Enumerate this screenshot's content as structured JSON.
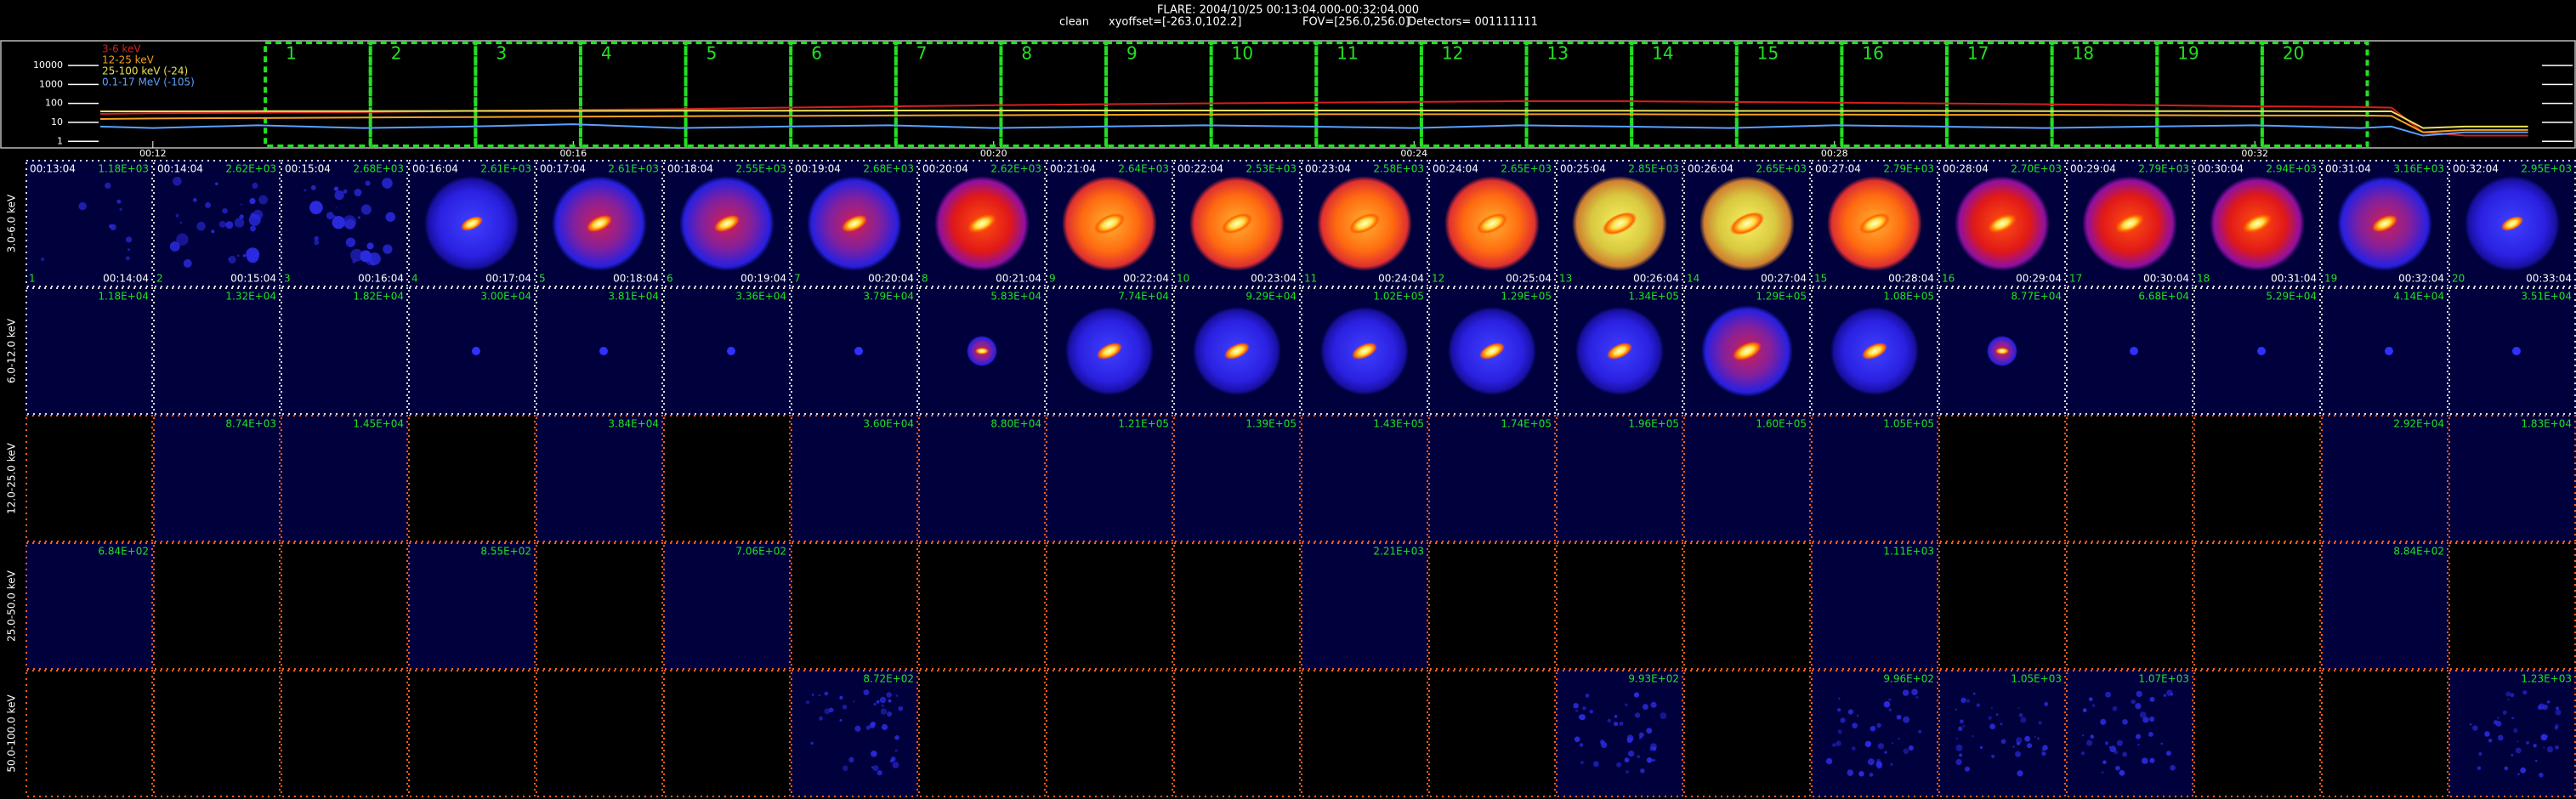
{
  "header": {
    "title": "FLARE: 2004/10/25 00:13:04.000-00:32:04.000",
    "info": [
      "clean",
      "xyoffset=[-263.0,102.2]",
      "FOV=[256.0,256.0]",
      "Detectors= 001111111"
    ]
  },
  "chart_data": {
    "type": "line",
    "log_y": true,
    "x": [
      11.5,
      12,
      13,
      14,
      15,
      16,
      17,
      18,
      19,
      20,
      21,
      22,
      23,
      24,
      25,
      26,
      27,
      28,
      29,
      30,
      31,
      32,
      33,
      33.3,
      33.6,
      34,
      34.6
    ],
    "xlim": [
      11.5,
      34.7
    ],
    "xticks": [
      {
        "value": 12,
        "label": "00:12"
      },
      {
        "value": 16,
        "label": "00:16"
      },
      {
        "value": 20,
        "label": "00:20"
      },
      {
        "value": 24,
        "label": "00:24"
      },
      {
        "value": 28,
        "label": "00:28"
      },
      {
        "value": 32,
        "label": "00:32"
      }
    ],
    "ylim": [
      0.45,
      200000
    ],
    "yticks": [
      1,
      10,
      100,
      1000,
      10000
    ],
    "series": [
      {
        "name": "3-6 keV",
        "color": "#d42020",
        "values": [
          28,
          30,
          32,
          35,
          40,
          45,
          50,
          60,
          70,
          80,
          90,
          100,
          110,
          120,
          130,
          130,
          120,
          110,
          100,
          90,
          80,
          70,
          65,
          60,
          3,
          2,
          2
        ]
      },
      {
        "name": "12-25 keV",
        "color": "#f0a020",
        "values": [
          15,
          16,
          17,
          18,
          19,
          20,
          21,
          22,
          23,
          24,
          25,
          26,
          27,
          27,
          27,
          27,
          26,
          26,
          25,
          25,
          24,
          23,
          23,
          22,
          3,
          4,
          4
        ]
      },
      {
        "name": "25-100 keV (-24)",
        "color": "#e8e060",
        "values": [
          38,
          38,
          39,
          39,
          40,
          40,
          41,
          41,
          42,
          42,
          42,
          42,
          42,
          42,
          41,
          41,
          40,
          40,
          40,
          39,
          39,
          39,
          38,
          38,
          5,
          6,
          6
        ]
      },
      {
        "name": "0.1-17 MeV (-105)",
        "color": "#5aa0ff",
        "values": [
          6,
          5,
          7,
          5,
          6,
          8,
          5,
          6,
          7,
          5,
          6,
          7,
          6,
          5,
          7,
          6,
          5,
          7,
          6,
          5,
          6,
          7,
          5,
          6,
          2,
          3,
          3
        ]
      }
    ],
    "intervals": [
      {
        "start": 13.07,
        "end": 14.07,
        "label": "1"
      },
      {
        "start": 14.07,
        "end": 15.07,
        "label": "2"
      },
      {
        "start": 15.07,
        "end": 16.07,
        "label": "3"
      },
      {
        "start": 16.07,
        "end": 17.07,
        "label": "4"
      },
      {
        "start": 17.07,
        "end": 18.07,
        "label": "5"
      },
      {
        "start": 18.07,
        "end": 19.07,
        "label": "6"
      },
      {
        "start": 19.07,
        "end": 20.07,
        "label": "7"
      },
      {
        "start": 20.07,
        "end": 21.07,
        "label": "8"
      },
      {
        "start": 21.07,
        "end": 22.07,
        "label": "9"
      },
      {
        "start": 22.07,
        "end": 23.07,
        "label": "10"
      },
      {
        "start": 23.07,
        "end": 24.07,
        "label": "11"
      },
      {
        "start": 24.07,
        "end": 25.07,
        "label": "12"
      },
      {
        "start": 25.07,
        "end": 26.07,
        "label": "13"
      },
      {
        "start": 26.07,
        "end": 27.07,
        "label": "14"
      },
      {
        "start": 27.07,
        "end": 28.07,
        "label": "15"
      },
      {
        "start": 28.07,
        "end": 29.07,
        "label": "16"
      },
      {
        "start": 29.07,
        "end": 30.07,
        "label": "17"
      },
      {
        "start": 30.07,
        "end": 31.07,
        "label": "18"
      },
      {
        "start": 31.07,
        "end": 32.07,
        "label": "19"
      },
      {
        "start": 32.07,
        "end": 33.07,
        "label": "20"
      }
    ]
  },
  "image_grid": {
    "times": [
      {
        "start": "00:13:04",
        "end": "00:14:04"
      },
      {
        "start": "00:14:04",
        "end": "00:15:04"
      },
      {
        "start": "00:15:04",
        "end": "00:16:04"
      },
      {
        "start": "00:16:04",
        "end": "00:17:04"
      },
      {
        "start": "00:17:04",
        "end": "00:18:04"
      },
      {
        "start": "00:18:04",
        "end": "00:19:04"
      },
      {
        "start": "00:19:04",
        "end": "00:20:04"
      },
      {
        "start": "00:20:04",
        "end": "00:21:04"
      },
      {
        "start": "00:21:04",
        "end": "00:22:04"
      },
      {
        "start": "00:22:04",
        "end": "00:23:04"
      },
      {
        "start": "00:23:04",
        "end": "00:24:04"
      },
      {
        "start": "00:24:04",
        "end": "00:25:04"
      },
      {
        "start": "00:25:04",
        "end": "00:26:04"
      },
      {
        "start": "00:26:04",
        "end": "00:27:04"
      },
      {
        "start": "00:27:04",
        "end": "00:28:04"
      },
      {
        "start": "00:28:04",
        "end": "00:29:04"
      },
      {
        "start": "00:29:04",
        "end": "00:30:04"
      },
      {
        "start": "00:30:04",
        "end": "00:31:04"
      },
      {
        "start": "00:31:04",
        "end": "00:32:04"
      },
      {
        "start": "00:32:04",
        "end": "00:33:04"
      }
    ],
    "rows": [
      {
        "label": "3.0-6.0 keV",
        "max": [
          "1.18E+03",
          "2.62E+03",
          "2.68E+03",
          "2.61E+03",
          "2.61E+03",
          "2.55E+03",
          "2.68E+03",
          "2.62E+03",
          "2.64E+03",
          "2.53E+03",
          "2.58E+03",
          "2.65E+03",
          "2.85E+03",
          "2.65E+03",
          "2.79E+03",
          "2.70E+03",
          "2.79E+03",
          "2.94E+03",
          "3.16E+03",
          "2.95E+03"
        ]
      },
      {
        "label": "6.0-12.0 keV",
        "max": [
          "1.18E+04",
          "1.32E+04",
          "1.82E+04",
          "3.00E+04",
          "3.81E+04",
          "3.36E+04",
          "3.79E+04",
          "5.83E+04",
          "7.74E+04",
          "9.29E+04",
          "1.02E+05",
          "1.29E+05",
          "1.34E+05",
          "1.29E+05",
          "1.08E+05",
          "8.77E+04",
          "6.68E+04",
          "5.29E+04",
          "4.14E+04",
          "3.51E+04"
        ]
      },
      {
        "label": "12.0-25.0 keV",
        "max": [
          null,
          "8.74E+03",
          "1.45E+04",
          null,
          "3.84E+04",
          null,
          "3.60E+04",
          "8.80E+04",
          "1.21E+05",
          "1.39E+05",
          "1.43E+05",
          "1.74E+05",
          "1.96E+05",
          "1.60E+05",
          "1.05E+05",
          null,
          null,
          null,
          "2.92E+04",
          "1.83E+04"
        ]
      },
      {
        "label": "25.0-50.0 keV",
        "max": [
          "6.84E+02",
          null,
          null,
          "8.55E+02",
          null,
          "7.06E+02",
          null,
          null,
          null,
          null,
          "2.21E+03",
          null,
          null,
          null,
          "1.11E+03",
          null,
          null,
          null,
          "8.84E+02",
          null
        ]
      },
      {
        "label": "50.0-100.0 keV",
        "max": [
          null,
          null,
          null,
          null,
          null,
          null,
          "8.72E+02",
          null,
          null,
          null,
          null,
          null,
          "9.93E+02",
          null,
          "9.96E+02",
          "1.05E+03",
          "1.07E+03",
          null,
          null,
          "1.23E+03"
        ]
      }
    ]
  }
}
